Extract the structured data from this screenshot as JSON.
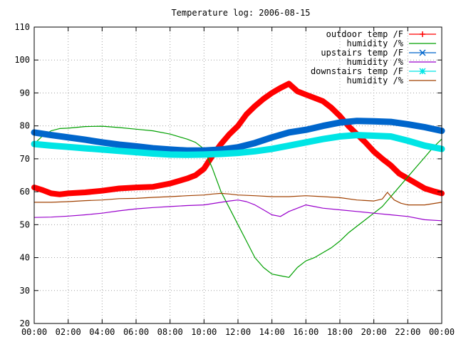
{
  "chart_data": {
    "type": "line",
    "title": "Temperature log: 2006-08-15",
    "xlabel": "",
    "ylabel": "",
    "xlim": [
      0,
      24
    ],
    "ylim": [
      20,
      110
    ],
    "x_ticks": [
      "00:00",
      "02:00",
      "04:00",
      "06:00",
      "08:00",
      "10:00",
      "12:00",
      "14:00",
      "16:00",
      "18:00",
      "20:00",
      "22:00",
      "00:00"
    ],
    "y_ticks": [
      "20",
      "30",
      "40",
      "50",
      "60",
      "70",
      "80",
      "90",
      "100",
      "110"
    ],
    "grid": true,
    "legend_position": "top-right",
    "series": [
      {
        "name": "outdoor temp /F",
        "color": "#ff0000",
        "marker": "plus",
        "x": [
          0,
          0.5,
          1,
          1.5,
          2,
          3,
          4,
          5,
          6,
          7,
          8,
          9,
          9.5,
          10,
          10.5,
          11,
          11.5,
          12,
          12.5,
          13,
          13.5,
          14,
          14.5,
          15,
          15.5,
          16,
          16.5,
          17,
          17.5,
          18,
          18.5,
          19,
          19.5,
          20,
          20.5,
          21,
          21.5,
          22,
          22.5,
          23,
          23.5,
          24
        ],
        "values": [
          61.3,
          60.5,
          59.5,
          59.2,
          59.5,
          59.8,
          60.3,
          61,
          61.3,
          61.5,
          62.5,
          64,
          65,
          67,
          71,
          74.5,
          77.5,
          80,
          83.5,
          86,
          88.2,
          90,
          91.5,
          92.8,
          90.5,
          89.5,
          88.5,
          87.5,
          85.5,
          83,
          80,
          77.5,
          75,
          72.2,
          70,
          68,
          65.5,
          64,
          62.5,
          61,
          60.2,
          59.5
        ]
      },
      {
        "name": "humidity /%",
        "color": "#00a000",
        "marker": "none",
        "x": [
          0,
          0.5,
          1,
          1.5,
          2,
          3,
          4,
          5,
          6,
          7,
          8,
          9,
          9.5,
          10,
          10.5,
          11,
          11.5,
          12,
          12.5,
          13,
          13.5,
          14,
          14.5,
          15,
          15.5,
          16,
          16.5,
          17,
          17.5,
          18,
          18.5,
          19,
          19.5,
          20,
          20.5,
          21,
          21.5,
          22,
          22.5,
          23,
          23.5,
          24
        ],
        "values": [
          74.5,
          77,
          78.5,
          79.2,
          79.3,
          79.8,
          79.9,
          79.5,
          79,
          78.5,
          77.5,
          76,
          75,
          73,
          67,
          60,
          55,
          50,
          45,
          40,
          37,
          35,
          34.5,
          34,
          37,
          39,
          40,
          41.5,
          43,
          45,
          47.5,
          49.5,
          51.5,
          53.5,
          55.5,
          58.5,
          61.5,
          64.5,
          67.5,
          70.5,
          73.5,
          76
        ]
      },
      {
        "name": "upstairs temp /F",
        "color": "#0066cc",
        "marker": "x",
        "x": [
          0,
          1,
          2,
          3,
          4,
          5,
          6,
          7,
          8,
          9,
          10,
          11,
          12,
          13,
          14,
          15,
          16,
          17,
          18,
          19,
          20,
          21,
          22,
          23,
          24
        ],
        "values": [
          78,
          77.2,
          76.5,
          75.8,
          75,
          74.3,
          73.8,
          73.2,
          72.8,
          72.5,
          72.5,
          72.8,
          73.5,
          74.8,
          76.5,
          78,
          78.8,
          80,
          81,
          81.5,
          81.4,
          81.2,
          80.5,
          79.6,
          78.5
        ]
      },
      {
        "name": "humidity /%",
        "color": "#9900cc",
        "marker": "none",
        "x": [
          0,
          1,
          2,
          3,
          4,
          5,
          6,
          7,
          8,
          9,
          10,
          11,
          11.5,
          12,
          12.5,
          13,
          13.5,
          14,
          14.5,
          15,
          15.5,
          16,
          16.5,
          17,
          18,
          19,
          20,
          21,
          22,
          23,
          24
        ],
        "values": [
          52.2,
          52.3,
          52.6,
          53,
          53.5,
          54.2,
          54.8,
          55.2,
          55.5,
          55.8,
          56,
          56.8,
          57.2,
          57.5,
          57,
          56,
          54.5,
          53,
          52.5,
          54,
          55,
          56,
          55.5,
          55,
          54.5,
          54,
          53.5,
          53,
          52.5,
          51.5,
          51.2
        ]
      },
      {
        "name": "downstairs temp /F",
        "color": "#00e5e5",
        "marker": "star",
        "x": [
          0,
          1,
          2,
          3,
          4,
          5,
          6,
          7,
          8,
          9,
          10,
          11,
          12,
          13,
          14,
          15,
          16,
          17,
          18,
          19,
          20,
          21,
          22,
          23,
          24
        ],
        "values": [
          74.5,
          74,
          73.6,
          73.2,
          72.8,
          72.4,
          72,
          71.6,
          71.3,
          71.2,
          71.3,
          71.5,
          71.8,
          72.3,
          73,
          74,
          75,
          76,
          76.8,
          77.2,
          77,
          76.8,
          75.5,
          74,
          73
        ]
      },
      {
        "name": "humidity /%",
        "color": "#a04000",
        "marker": "none",
        "x": [
          0,
          1,
          2,
          3,
          4,
          5,
          6,
          7,
          8,
          9,
          10,
          10.5,
          11,
          11.5,
          12,
          13,
          14,
          15,
          16,
          17,
          18,
          19,
          20,
          20.5,
          20.8,
          21.2,
          21.6,
          22,
          23,
          24
        ],
        "values": [
          56.8,
          56.8,
          57,
          57.3,
          57.5,
          57.9,
          58,
          58.3,
          58.5,
          58.8,
          59,
          59.3,
          59.5,
          59.3,
          59,
          58.8,
          58.5,
          58.5,
          58.8,
          58.5,
          58.2,
          57.5,
          57.2,
          57.8,
          59.8,
          57.5,
          56.5,
          56,
          56,
          56.8
        ]
      }
    ]
  }
}
